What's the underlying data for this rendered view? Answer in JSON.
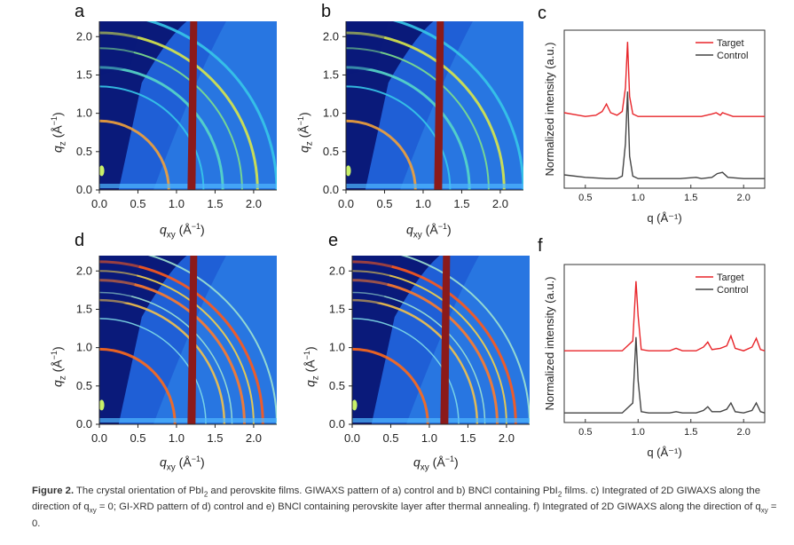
{
  "panels": {
    "a": {
      "label": "a"
    },
    "b": {
      "label": "b"
    },
    "c": {
      "label": "c"
    },
    "d": {
      "label": "d"
    },
    "e": {
      "label": "e"
    },
    "f": {
      "label": "f"
    }
  },
  "giwaxs_axes": {
    "xlabel_main": "q",
    "xlabel_sub": "xy",
    "xlabel_unit": " (Å",
    "xlabel_exp": "−1",
    "xlabel_close": ")",
    "ylabel_main": "q",
    "ylabel_sub": "z",
    "ylabel_unit": " (Å",
    "ylabel_exp": "−1",
    "ylabel_close": ")",
    "xticks": [
      "0.0",
      "0.5",
      "1.0",
      "1.5",
      "2.0"
    ],
    "yticks": [
      "0.0",
      "0.5",
      "1.0",
      "1.5",
      "2.0"
    ]
  },
  "chart_data": [
    {
      "panel": "c",
      "type": "line",
      "ylabel": "Normalized intensity (a.u.)",
      "xlabel": "q (Å⁻¹)",
      "xticks": [
        "0.5",
        "1.0",
        "1.5",
        "2.0"
      ],
      "xlim": [
        0.3,
        2.2
      ],
      "legend": "top-right",
      "series": [
        {
          "name": "Target",
          "color": "#e8252a",
          "offset": 0.5,
          "x": [
            0.3,
            0.5,
            0.6,
            0.66,
            0.7,
            0.74,
            0.8,
            0.85,
            0.88,
            0.9,
            0.92,
            0.95,
            1.0,
            1.2,
            1.4,
            1.6,
            1.7,
            1.74,
            1.78,
            1.8,
            1.9,
            2.0,
            2.2
          ],
          "y": [
            0.05,
            0.02,
            0.03,
            0.06,
            0.12,
            0.05,
            0.03,
            0.06,
            0.25,
            0.62,
            0.18,
            0.04,
            0.02,
            0.02,
            0.02,
            0.02,
            0.04,
            0.05,
            0.03,
            0.05,
            0.02,
            0.02,
            0.02
          ]
        },
        {
          "name": "Control",
          "color": "#444444",
          "offset": 0.0,
          "x": [
            0.3,
            0.5,
            0.7,
            0.8,
            0.85,
            0.88,
            0.9,
            0.92,
            0.95,
            1.0,
            1.2,
            1.4,
            1.55,
            1.6,
            1.7,
            1.75,
            1.8,
            1.85,
            2.0,
            2.2
          ],
          "y": [
            0.05,
            0.03,
            0.02,
            0.02,
            0.04,
            0.3,
            0.72,
            0.2,
            0.04,
            0.02,
            0.02,
            0.02,
            0.03,
            0.02,
            0.03,
            0.06,
            0.07,
            0.03,
            0.02,
            0.02
          ]
        }
      ],
      "legend_entries": [
        "Target",
        "Control"
      ]
    },
    {
      "panel": "f",
      "type": "line",
      "ylabel": "Normalized intensity (a.u.)",
      "xlabel": "q (Å⁻¹)",
      "xticks": [
        "0.5",
        "1.0",
        "1.5",
        "2.0"
      ],
      "xlim": [
        0.3,
        2.2
      ],
      "legend": "top-right",
      "series": [
        {
          "name": "Target",
          "color": "#e8252a",
          "offset": 0.5,
          "x": [
            0.3,
            0.6,
            0.85,
            0.95,
            0.98,
            1.0,
            1.03,
            1.1,
            1.3,
            1.36,
            1.42,
            1.55,
            1.62,
            1.66,
            1.7,
            1.78,
            1.84,
            1.88,
            1.92,
            2.0,
            2.08,
            2.12,
            2.16,
            2.2
          ],
          "y": [
            0.02,
            0.02,
            0.02,
            0.1,
            0.58,
            0.3,
            0.03,
            0.02,
            0.02,
            0.04,
            0.02,
            0.02,
            0.05,
            0.09,
            0.03,
            0.04,
            0.06,
            0.14,
            0.04,
            0.02,
            0.05,
            0.12,
            0.03,
            0.02
          ]
        },
        {
          "name": "Control",
          "color": "#444444",
          "offset": 0.0,
          "x": [
            0.3,
            0.6,
            0.85,
            0.95,
            0.98,
            1.0,
            1.03,
            1.1,
            1.3,
            1.36,
            1.42,
            1.55,
            1.62,
            1.66,
            1.7,
            1.78,
            1.84,
            1.88,
            1.92,
            2.0,
            2.08,
            2.12,
            2.16,
            2.2
          ],
          "y": [
            0.02,
            0.02,
            0.02,
            0.1,
            0.63,
            0.28,
            0.03,
            0.02,
            0.02,
            0.03,
            0.02,
            0.02,
            0.04,
            0.07,
            0.03,
            0.03,
            0.05,
            0.1,
            0.03,
            0.02,
            0.04,
            0.1,
            0.03,
            0.02
          ]
        }
      ],
      "legend_entries": [
        "Target",
        "Control"
      ]
    }
  ],
  "caption": {
    "figure_label": "Figure 2.",
    "text_1": " The crystal orientation of PbI",
    "sub_1": "2",
    "text_2": " and perovskite films. GIWAXS pattern of a) control and b) BNCl containing PbI",
    "sub_2": "2",
    "text_3": " films. c) Integrated of 2D GIWAXS along the direction of q",
    "sub_3": "xy",
    "text_4": " = 0; GI-XRD pattern of d) control and e) BNCl containing perovskite layer after thermal annealing. f) Integrated of 2D GIWAXS along the direction of q",
    "sub_4": "xy",
    "text_5": " = 0."
  },
  "colors": {
    "bg_dark": "#0a1a7a",
    "beam_stop": "#8b1a1a",
    "target": "#e8252a",
    "control": "#444444"
  }
}
